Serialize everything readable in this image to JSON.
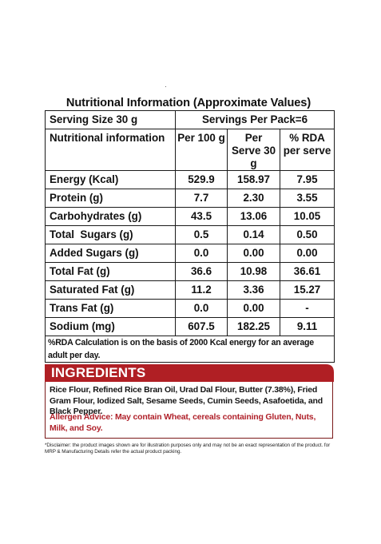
{
  "nutrition": {
    "title": "Nutritional Information (Approximate Values)",
    "serving_size": "Serving Size 30 g",
    "servings_per_pack": "Servings Per Pack=6",
    "headers": {
      "nutrient": "Nutritional information",
      "per_100g": "Per 100 g",
      "per_serve": "Per Serve 30 g",
      "rda": "% RDA per serve"
    },
    "rows": [
      {
        "name": "Energy (Kcal)",
        "per_100g": "529.9",
        "per_serve": "158.97",
        "rda": "7.95"
      },
      {
        "name": "Protein (g)",
        "per_100g": "7.7",
        "per_serve": "2.30",
        "rda": "3.55"
      },
      {
        "name": "Carbohydrates (g)",
        "per_100g": "43.5",
        "per_serve": "13.06",
        "rda": "10.05"
      },
      {
        "name": "Total  Sugars (g)",
        "per_100g": "0.5",
        "per_serve": "0.14",
        "rda": "0.50"
      },
      {
        "name": "Added Sugars (g)",
        "per_100g": "0.0",
        "per_serve": "0.00",
        "rda": "0.00"
      },
      {
        "name": "Total Fat (g)",
        "per_100g": "36.6",
        "per_serve": "10.98",
        "rda": "36.61"
      },
      {
        "name": "Saturated Fat (g)",
        "per_100g": "11.2",
        "per_serve": "3.36",
        "rda": "15.27"
      },
      {
        "name": "Trans Fat (g)",
        "per_100g": "0.0",
        "per_serve": "0.00",
        "rda": "-"
      },
      {
        "name": "Sodium (mg)",
        "per_100g": "607.5",
        "per_serve": "182.25",
        "rda": "9.11"
      }
    ],
    "footnote": "%RDA Calculation is on the basis of 2000 Kcal energy for an average adult per day."
  },
  "ingredients": {
    "title": "INGREDIENTS",
    "text": "Rice Flour, Refined Rice Bran Oil, Urad Dal Flour, Butter (7.38%), Fried Gram Flour, Iodized Salt, Sesame Seeds, Cumin Seeds, Asafoetida, and Black Pepper.",
    "allergen": "Allergen Advice: May contain Wheat, cereals containing Gluten, Nuts, Milk, and Soy."
  },
  "disclaimer": "*Disclaimer: the product images shown are for illustration purposes only and may not be an exact representation of the product. for MRP & Manufacturing Details refer the actual product packing.",
  "colors": {
    "band": "#b01f24",
    "allergen": "#b0222b",
    "border": "#1a1a1a"
  }
}
